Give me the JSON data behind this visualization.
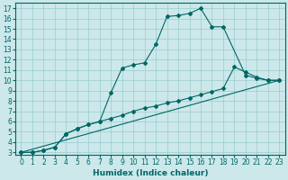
{
  "xlabel": "Humidex (Indice chaleur)",
  "ylabel": "",
  "bg_color": "#cce8ea",
  "grid_color": "#99cccc",
  "line_color": "#006666",
  "spine_color": "#006666",
  "xlim": [
    -0.5,
    23.5
  ],
  "ylim": [
    2.8,
    17.5
  ],
  "xticks": [
    0,
    1,
    2,
    3,
    4,
    5,
    6,
    7,
    8,
    9,
    10,
    11,
    12,
    13,
    14,
    15,
    16,
    17,
    18,
    19,
    20,
    21,
    22,
    23
  ],
  "yticks": [
    3,
    4,
    5,
    6,
    7,
    8,
    9,
    10,
    11,
    12,
    13,
    14,
    15,
    16,
    17
  ],
  "line1_x": [
    0,
    1,
    2,
    3,
    4,
    5,
    6,
    7,
    8,
    9,
    10,
    11,
    12,
    13,
    14,
    15,
    16,
    17,
    18,
    20,
    21,
    22,
    23
  ],
  "line1_y": [
    3.0,
    3.0,
    3.2,
    3.5,
    4.8,
    5.3,
    5.7,
    6.0,
    8.8,
    11.2,
    11.5,
    11.7,
    13.5,
    16.2,
    16.3,
    16.5,
    17.0,
    15.2,
    15.2,
    10.5,
    10.2,
    10.0,
    10.0
  ],
  "line2_x": [
    0,
    1,
    2,
    3,
    4,
    5,
    6,
    7,
    8,
    9,
    10,
    11,
    12,
    13,
    14,
    15,
    16,
    17,
    18,
    19,
    20,
    21,
    22,
    23
  ],
  "line2_y": [
    3.0,
    3.0,
    3.2,
    3.5,
    4.8,
    5.3,
    5.7,
    6.0,
    6.3,
    6.6,
    7.0,
    7.3,
    7.5,
    7.8,
    8.0,
    8.3,
    8.6,
    8.9,
    9.2,
    11.3,
    10.8,
    10.3,
    10.0,
    10.0
  ],
  "line3_x": [
    0,
    23
  ],
  "line3_y": [
    3.0,
    10.0
  ],
  "tick_fontsize": 5.5,
  "xlabel_fontsize": 6.5
}
